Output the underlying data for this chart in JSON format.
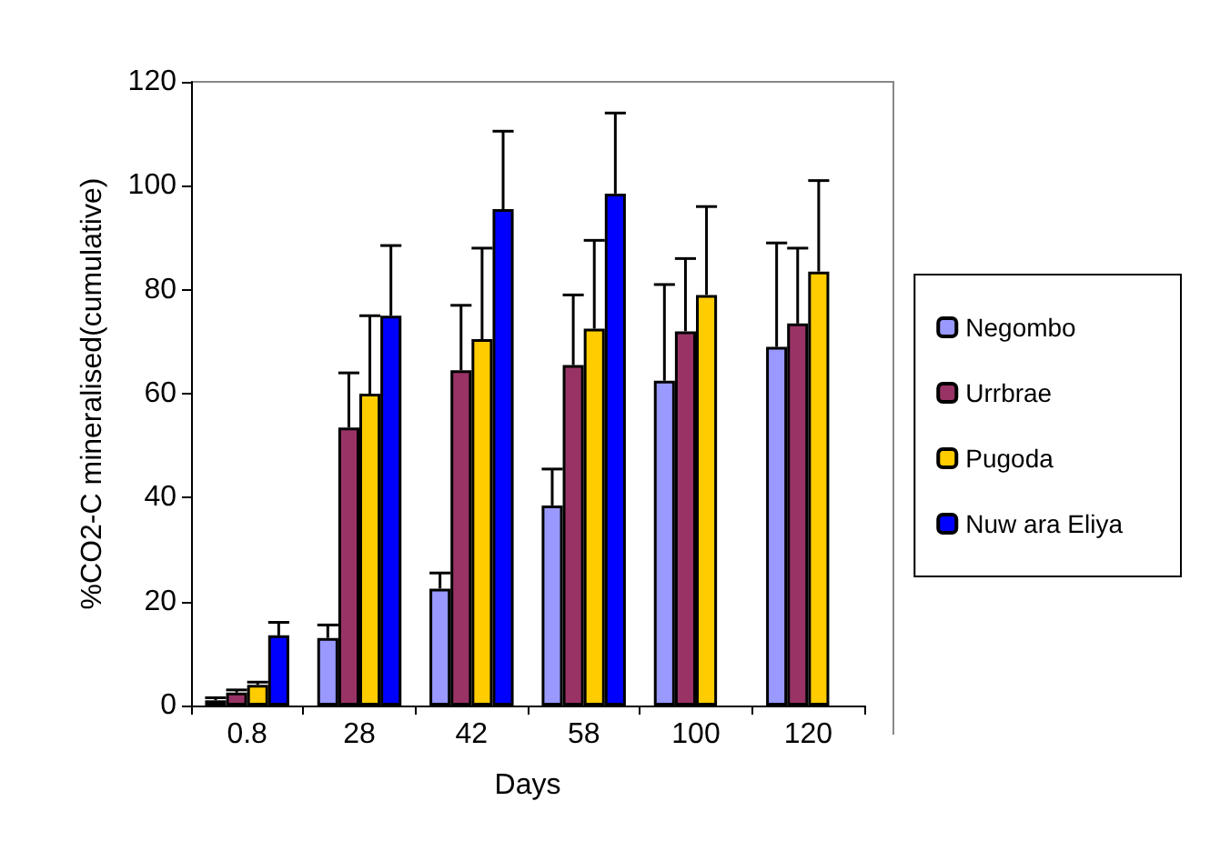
{
  "chart_data": {
    "type": "bar",
    "xlabel": "Days",
    "ylabel": "%CO2-C mineralised(cumulative)",
    "categories": [
      "0.8",
      "28",
      "42",
      "58",
      "100",
      "120"
    ],
    "series": [
      {
        "name": "Negombo",
        "color": "#9999ff",
        "values": [
          1,
          13,
          22.5,
          38.5,
          62.5,
          69
        ],
        "errors": [
          [
            1,
            1.5
          ],
          [
            13,
            15.5
          ],
          [
            22.5,
            25.5
          ],
          [
            38.5,
            45.5
          ],
          [
            62.5,
            81
          ],
          [
            69,
            89
          ]
        ]
      },
      {
        "name": "Urrbrae",
        "color": "#993366",
        "values": [
          2.5,
          53.5,
          64.5,
          65.5,
          72,
          73.5
        ],
        "errors": [
          [
            2.5,
            3
          ],
          [
            53.5,
            64
          ],
          [
            64.5,
            77
          ],
          [
            65.5,
            79
          ],
          [
            72,
            86
          ],
          [
            73.5,
            88
          ]
        ]
      },
      {
        "name": "Pugoda",
        "color": "#ffcc00",
        "values": [
          4,
          60,
          70.5,
          72.5,
          79,
          83.5
        ],
        "errors": [
          [
            4,
            4.5
          ],
          [
            60,
            75
          ],
          [
            70.5,
            88
          ],
          [
            72.5,
            89.5
          ],
          [
            79,
            96
          ],
          [
            83.5,
            101
          ]
        ]
      },
      {
        "name": "Nuw ara Eliya",
        "color": "#0000ff",
        "values": [
          13.5,
          75,
          95.5,
          98.5,
          null,
          null
        ],
        "errors": [
          [
            13.5,
            16
          ],
          [
            75,
            88.5
          ],
          [
            95.5,
            110.5
          ],
          [
            98.5,
            114
          ],
          null,
          null
        ]
      }
    ],
    "ylim": [
      0,
      120
    ],
    "yticks": [
      0,
      20,
      40,
      60,
      80,
      100,
      120
    ],
    "grid": false,
    "legend": "right"
  }
}
